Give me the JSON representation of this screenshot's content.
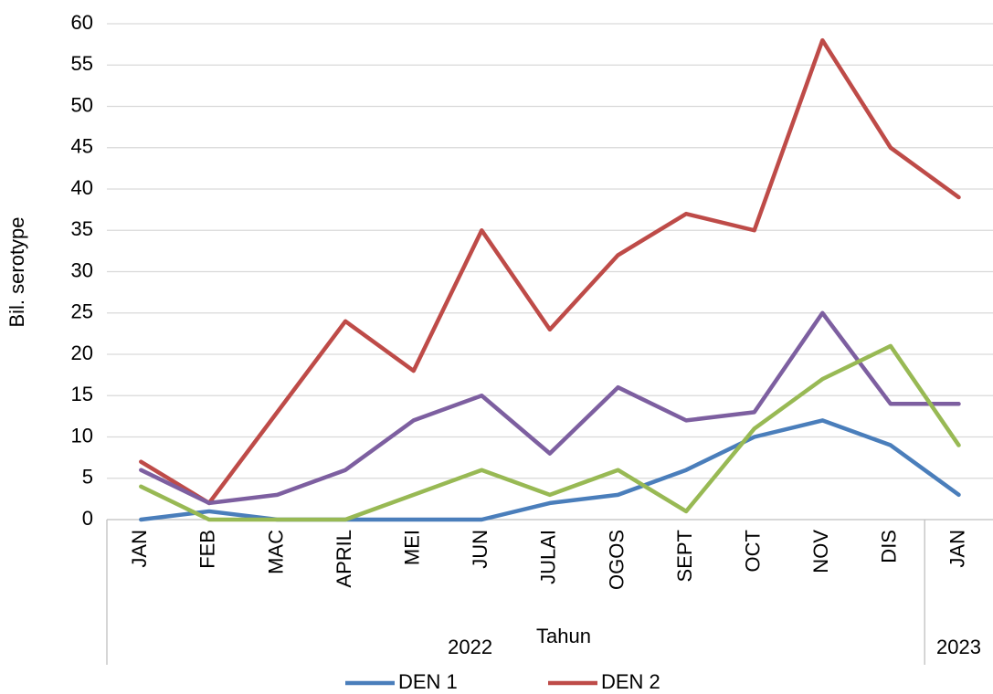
{
  "chart_data": {
    "type": "line",
    "y_label": "Bil. serotype",
    "x_label": "Tahun",
    "categories": [
      "JAN",
      "FEB",
      "MAC",
      "APRIL",
      "MEI",
      "JUN",
      "JULAI",
      "OGOS",
      "SEPT",
      "OCT",
      "NOV",
      "DIS",
      "JAN"
    ],
    "category_groups": [
      {
        "label": "2022",
        "span": 12
      },
      {
        "label": "2023",
        "span": 1
      }
    ],
    "series": [
      {
        "name": "DEN 1",
        "color": "#4a7ebb",
        "values": [
          0,
          1,
          0,
          0,
          0,
          0,
          2,
          3,
          6,
          10,
          12,
          9,
          3
        ]
      },
      {
        "name": "DEN 2",
        "color": "#be4b48",
        "values": [
          7,
          2,
          13,
          24,
          18,
          35,
          23,
          32,
          37,
          35,
          58,
          45,
          39
        ]
      },
      {
        "color": "#7d5fa0",
        "values": [
          6,
          2,
          3,
          6,
          12,
          15,
          8,
          16,
          12,
          13,
          25,
          14,
          14
        ]
      },
      {
        "color": "#98b954",
        "values": [
          4,
          0,
          0,
          0,
          3,
          6,
          3,
          6,
          1,
          11,
          17,
          21,
          9
        ]
      }
    ],
    "ylim": [
      0,
      60
    ],
    "yticks": [
      0,
      5,
      10,
      15,
      20,
      25,
      30,
      35,
      40,
      45,
      50,
      55,
      60
    ],
    "grid": true
  }
}
